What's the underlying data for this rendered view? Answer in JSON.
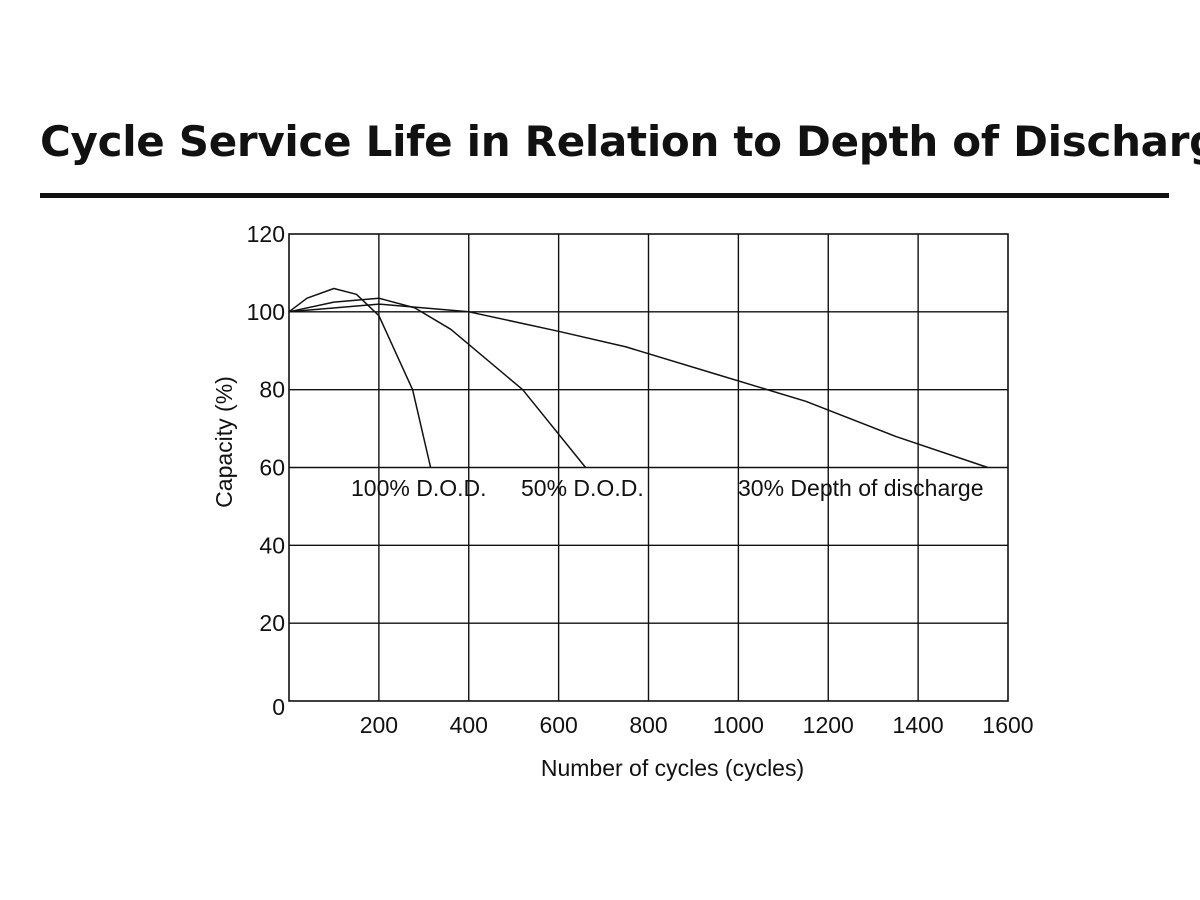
{
  "title": "Cycle Service Life in Relation to Depth of Discharge",
  "chart_data": {
    "type": "line",
    "title": "Cycle Service Life in Relation to Depth of Discharge",
    "xlabel": "Number of cycles  (cycles)",
    "ylabel": "Capacity (%)",
    "xlim": [
      0,
      1600
    ],
    "ylim": [
      0,
      120
    ],
    "x_ticks": [
      200,
      400,
      600,
      800,
      1000,
      1200,
      1400,
      1600
    ],
    "y_ticks": [
      0,
      20,
      40,
      60,
      80,
      100,
      120
    ],
    "grid": true,
    "series": [
      {
        "name": "100% D.O.D.",
        "x": [
          0,
          40,
          100,
          150,
          200,
          275,
          315
        ],
        "y": [
          100,
          103.5,
          106,
          104.5,
          99,
          80,
          60
        ]
      },
      {
        "name": "50% D.O.D.",
        "x": [
          0,
          100,
          200,
          280,
          360,
          520,
          660
        ],
        "y": [
          100,
          102.5,
          103.5,
          101,
          95.5,
          80,
          60
        ]
      },
      {
        "name": "30% Depth of discharge",
        "x": [
          0,
          200,
          400,
          600,
          750,
          950,
          1150,
          1350,
          1555
        ],
        "y": [
          100,
          102,
          100,
          95,
          91,
          84,
          77,
          68,
          60
        ]
      }
    ]
  }
}
